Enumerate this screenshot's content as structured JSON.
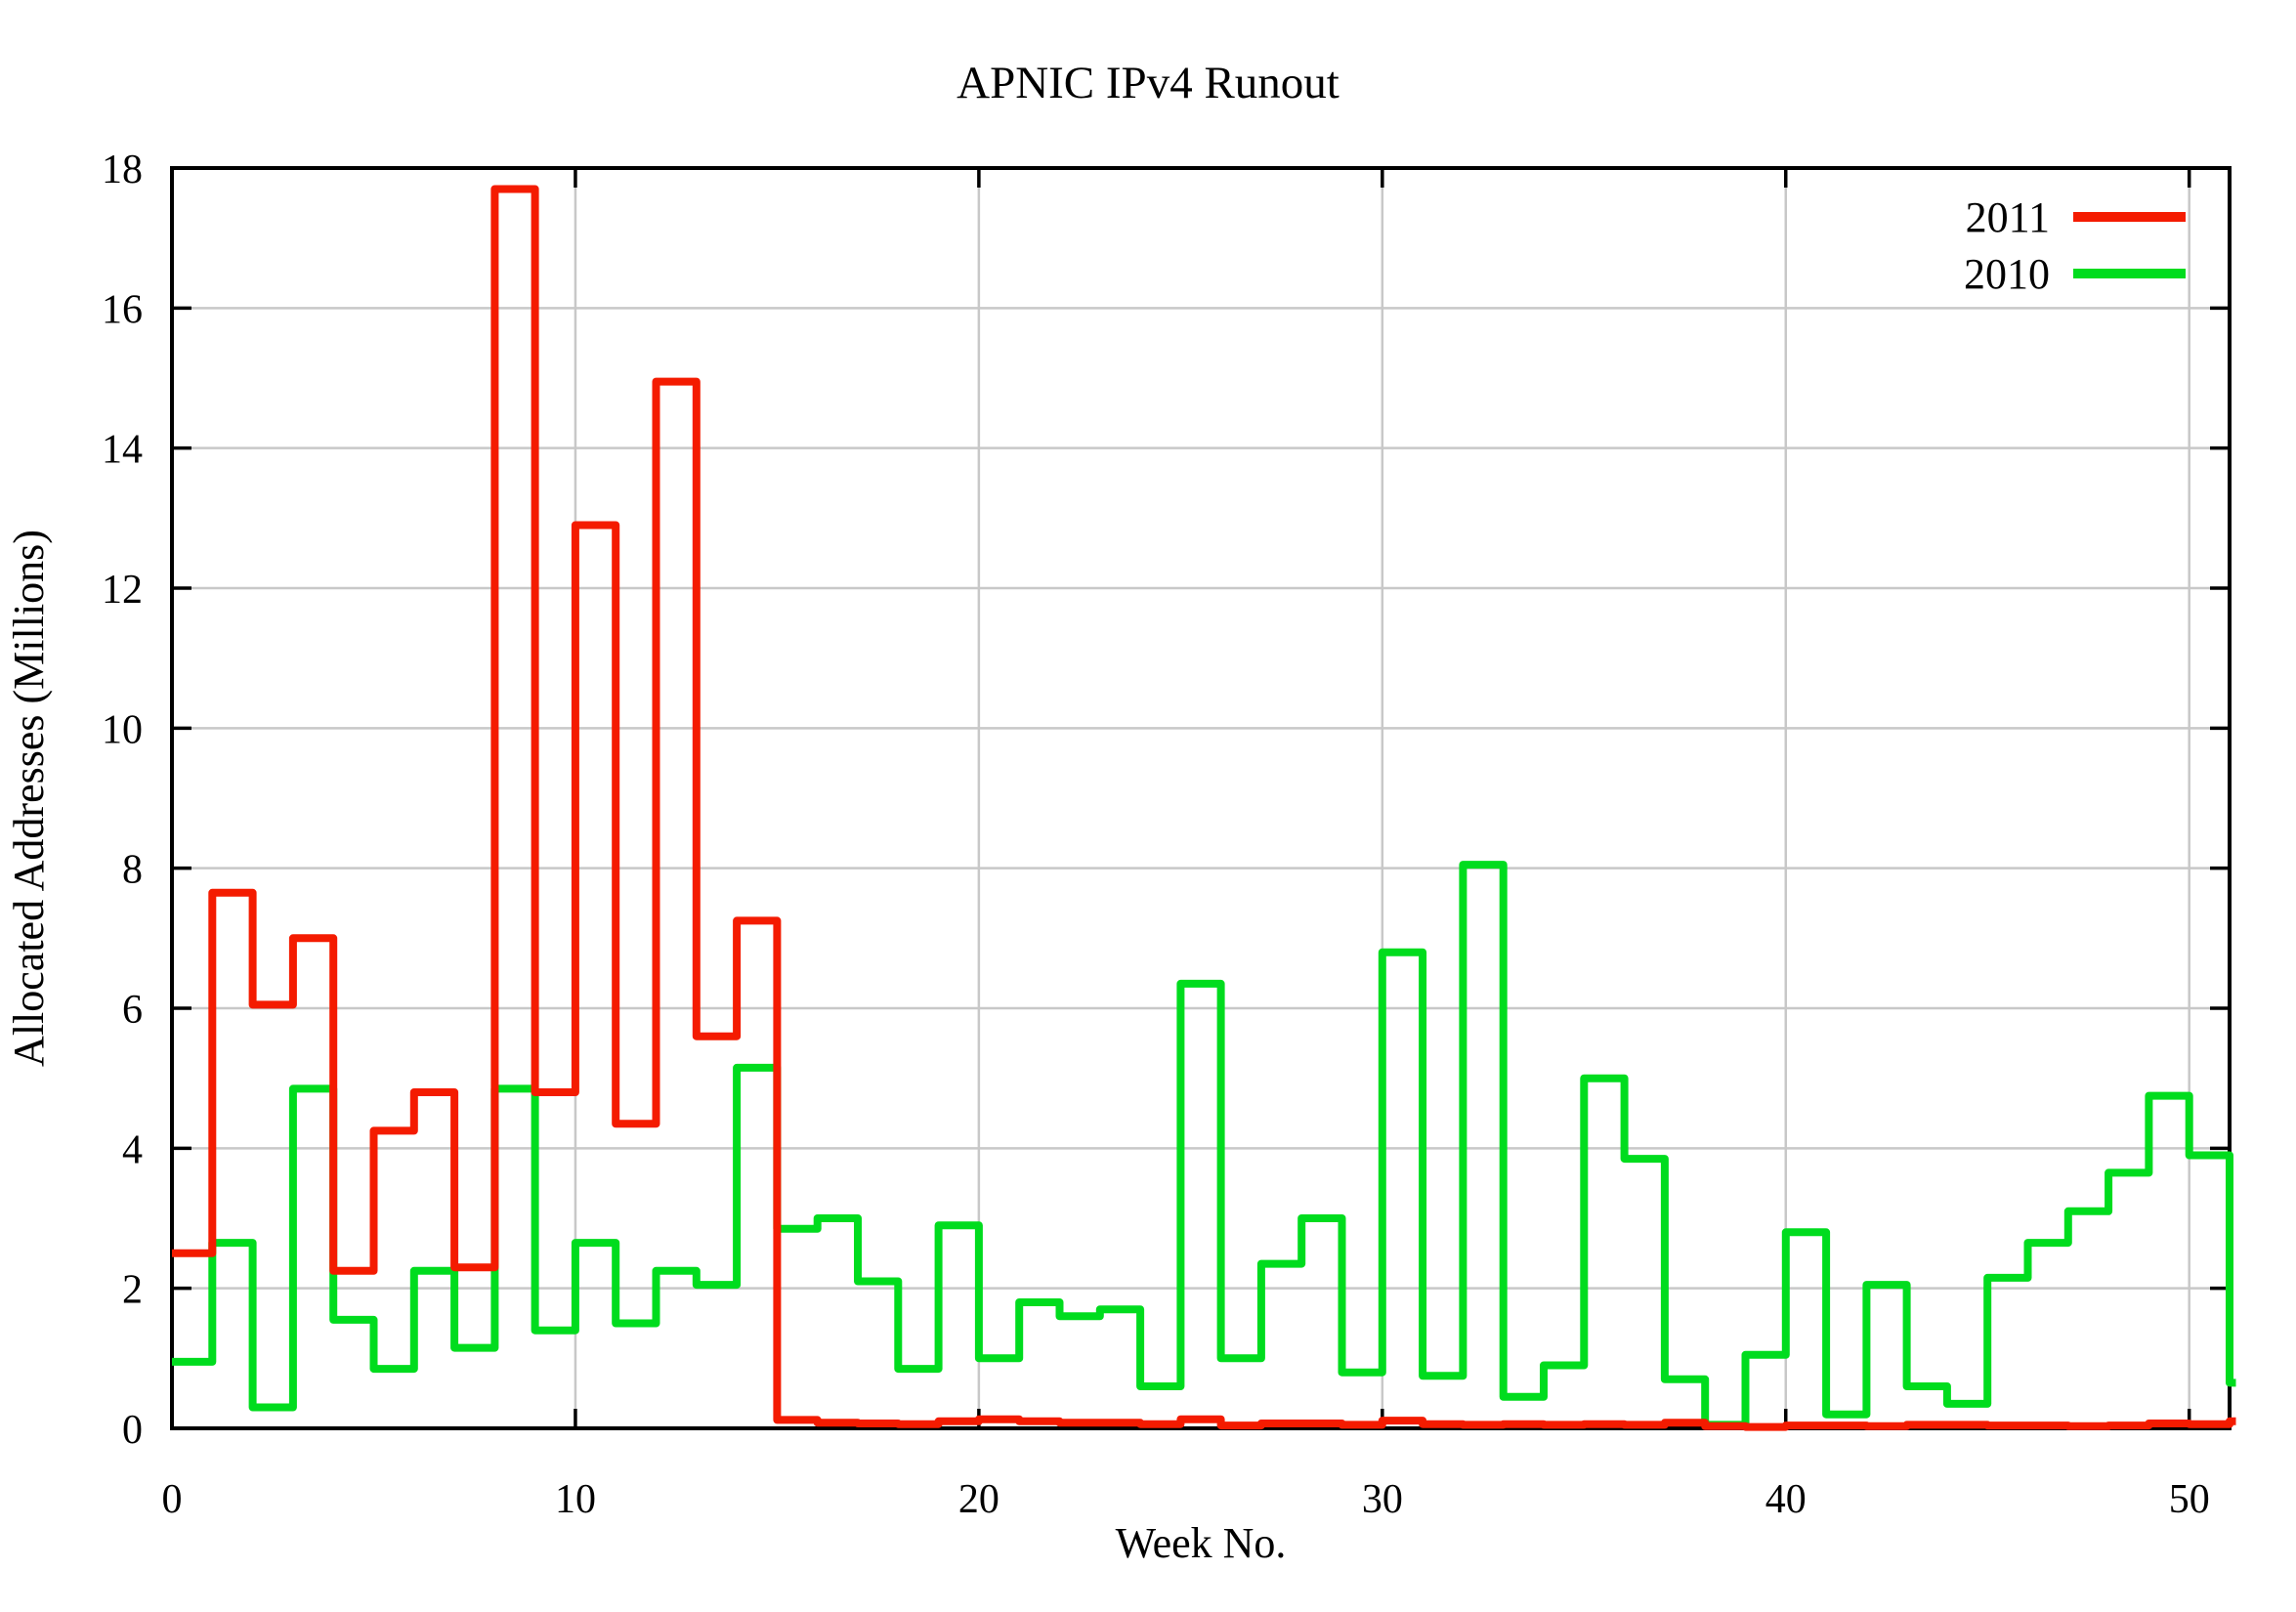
{
  "chart_data": {
    "type": "line",
    "style": "steps",
    "title": "APNIC IPv4 Runout",
    "xlabel": "Week No.",
    "ylabel": "Allocated Addresses (Millions)",
    "xlim": [
      0,
      51.15
    ],
    "ylim": [
      0,
      18
    ],
    "xticks": [
      0,
      10,
      20,
      30,
      40,
      50
    ],
    "yticks": [
      0,
      2,
      4,
      6,
      8,
      10,
      12,
      14,
      16,
      18
    ],
    "grid": true,
    "legend_position": "top-right-inside",
    "background_color": "#ffffff",
    "grid_color": "#c8c8c8",
    "border_color": "#000000",
    "x": [
      0,
      1,
      2,
      3,
      4,
      5,
      6,
      7,
      8,
      9,
      10,
      11,
      12,
      13,
      14,
      15,
      16,
      17,
      18,
      19,
      20,
      21,
      22,
      23,
      24,
      25,
      26,
      27,
      28,
      29,
      30,
      31,
      32,
      33,
      34,
      35,
      36,
      37,
      38,
      39,
      40,
      41,
      42,
      43,
      44,
      45,
      46,
      47,
      48,
      49,
      50,
      51
    ],
    "series": [
      {
        "name": "2011",
        "color": "#f41b00",
        "values": [
          2.5,
          7.65,
          6.05,
          7.0,
          2.25,
          4.25,
          4.8,
          2.3,
          17.7,
          4.8,
          12.9,
          4.35,
          14.95,
          5.6,
          7.25,
          0.12,
          0.08,
          0.07,
          0.06,
          0.1,
          0.13,
          0.1,
          0.08,
          0.08,
          0.06,
          0.13,
          0.04,
          0.07,
          0.07,
          0.05,
          0.11,
          0.06,
          0.05,
          0.06,
          0.05,
          0.06,
          0.05,
          0.08,
          0.03,
          0.02,
          0.04,
          0.04,
          0.03,
          0.05,
          0.05,
          0.04,
          0.04,
          0.03,
          0.04,
          0.07,
          0.06,
          0.1
        ]
      },
      {
        "name": "2010",
        "color": "#00dc1e",
        "values": [
          0.95,
          2.65,
          0.3,
          4.85,
          1.55,
          0.85,
          2.25,
          1.15,
          4.85,
          1.4,
          2.65,
          1.5,
          2.25,
          2.05,
          5.15,
          2.85,
          3.0,
          2.1,
          0.85,
          2.9,
          1.0,
          1.8,
          1.6,
          1.7,
          0.6,
          6.35,
          1.0,
          2.35,
          3.0,
          0.8,
          6.8,
          0.75,
          8.05,
          0.45,
          0.9,
          5.0,
          3.85,
          0.7,
          0.05,
          1.05,
          2.8,
          0.2,
          2.05,
          0.6,
          0.35,
          2.15,
          2.65,
          3.1,
          3.65,
          4.75,
          3.9,
          0.65
        ]
      }
    ]
  }
}
